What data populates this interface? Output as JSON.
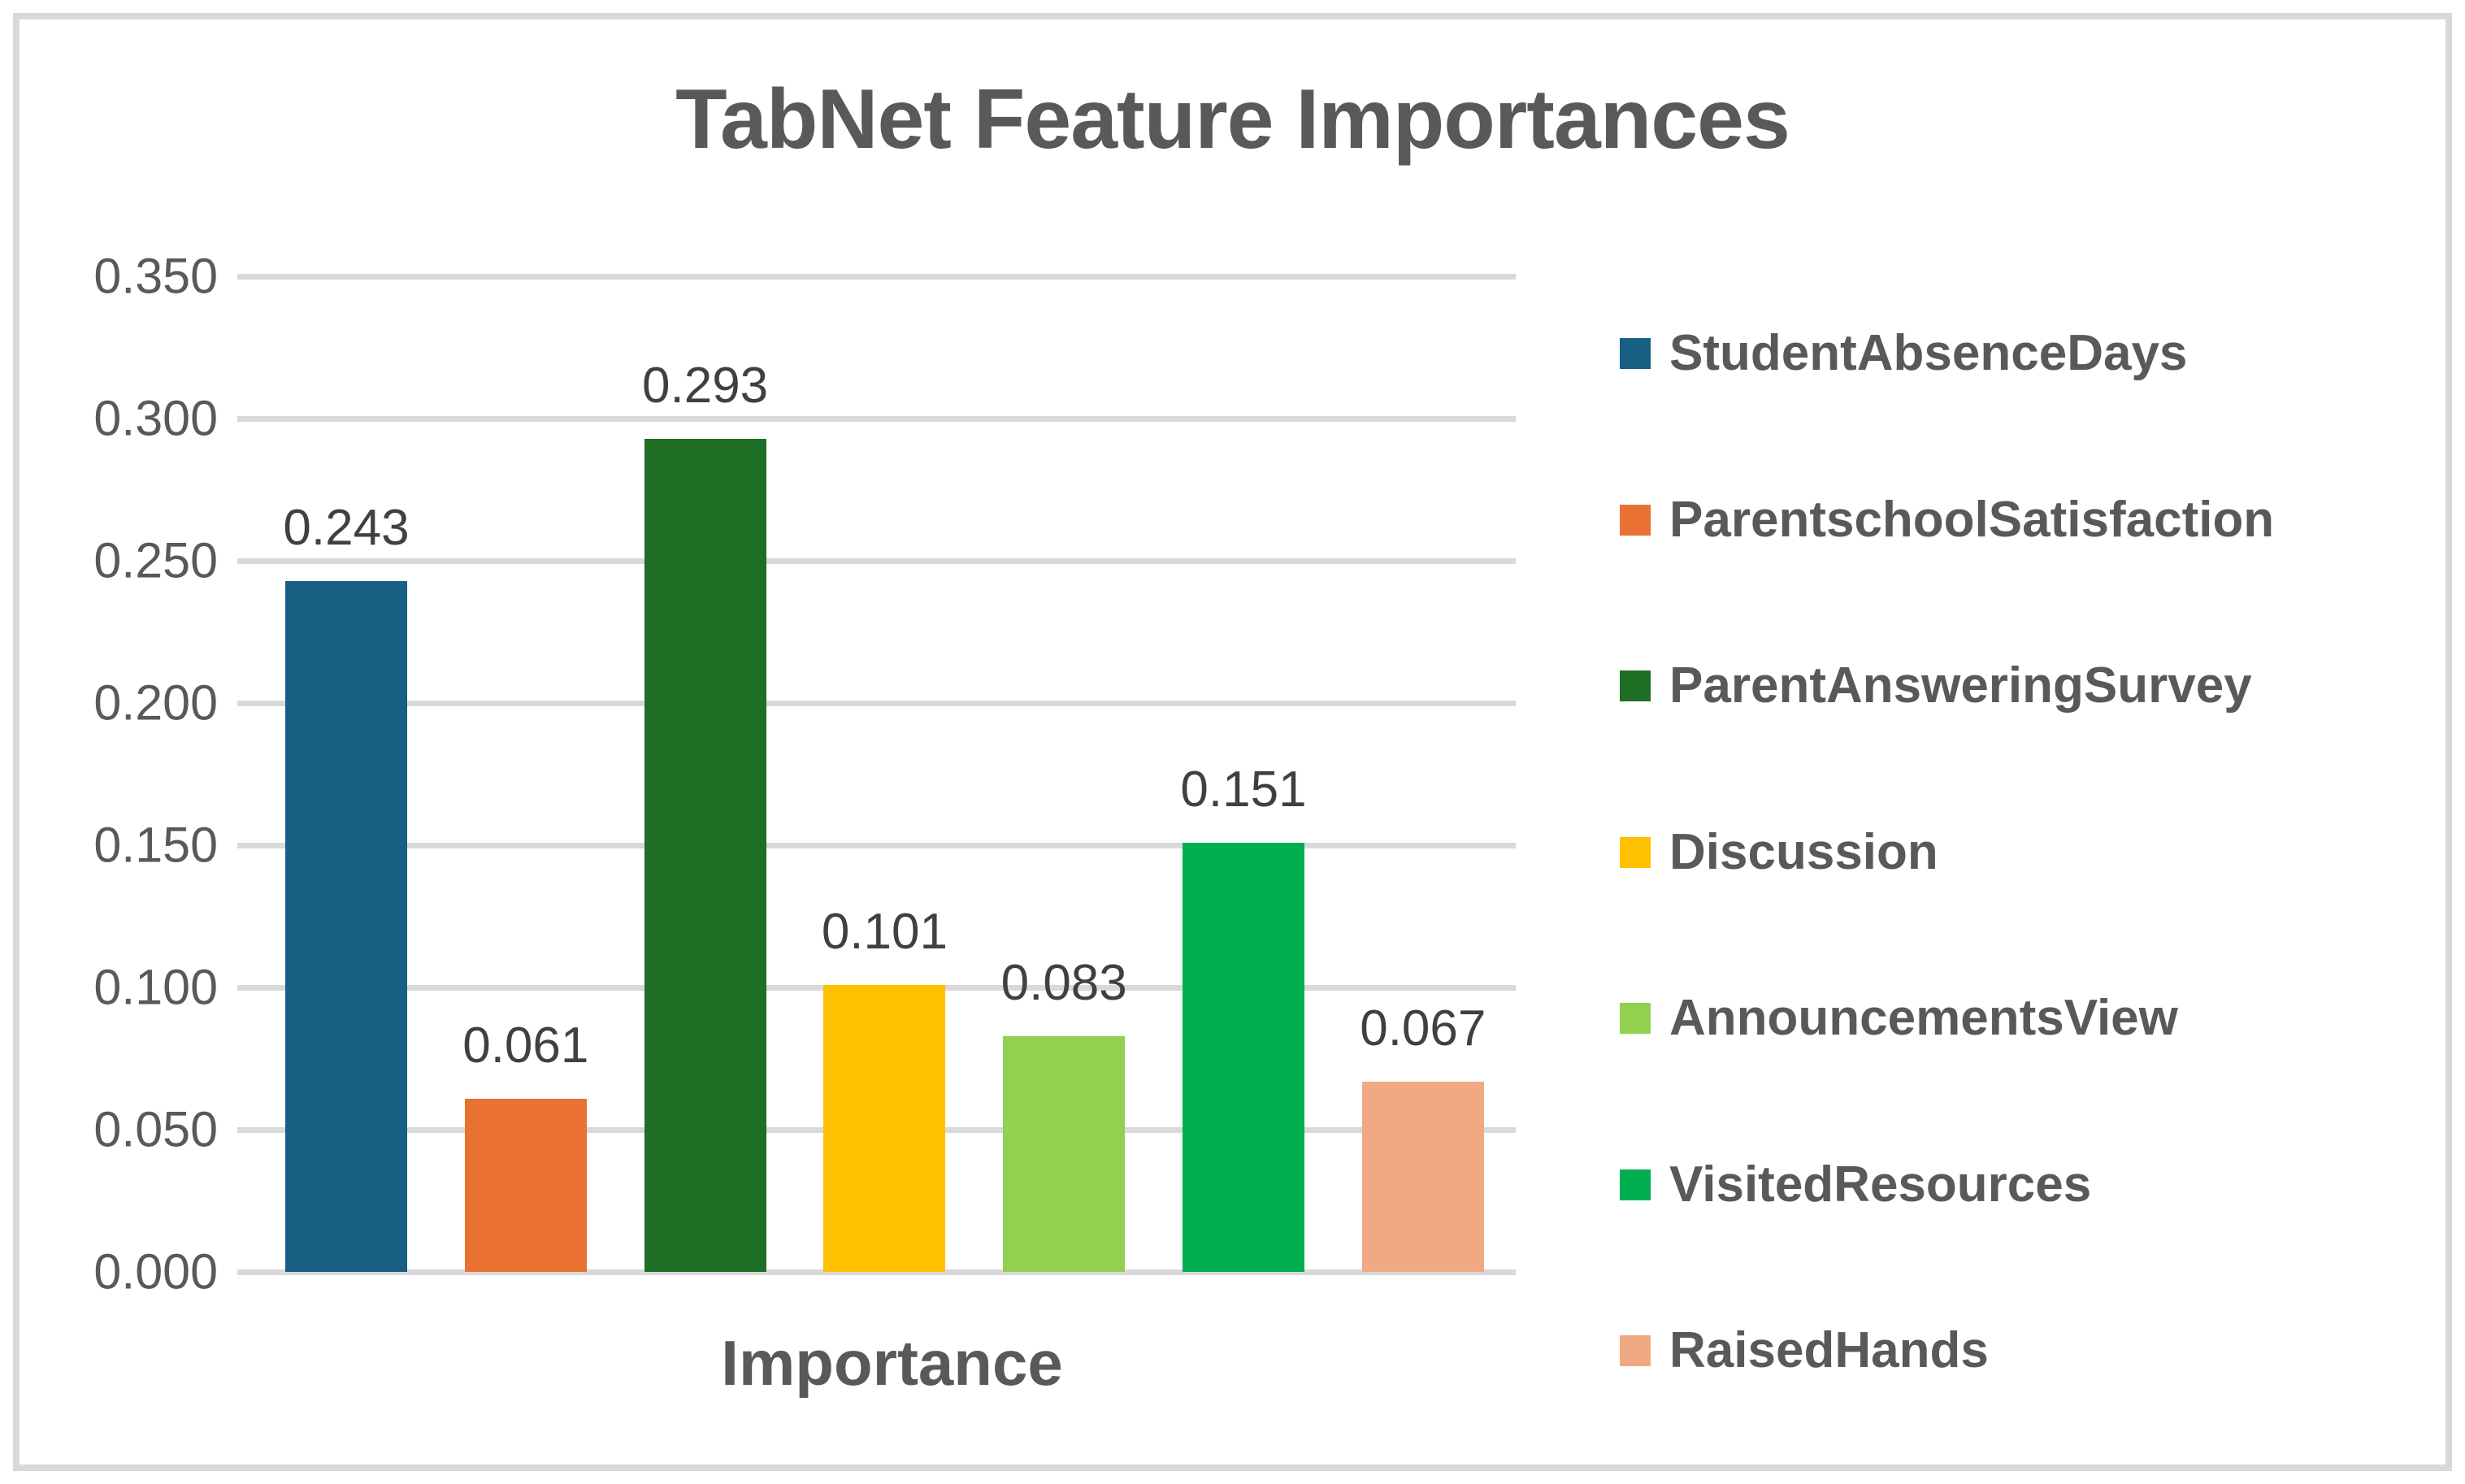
{
  "chart_data": {
    "type": "bar",
    "title": "TabNet Feature Importances",
    "xlabel": "Importance",
    "ylabel": "",
    "ylim": [
      0,
      0.35
    ],
    "grid": "horizontal",
    "legend_position": "right",
    "yticks": [
      {
        "value": 0.35,
        "label": "0.350"
      },
      {
        "value": 0.3,
        "label": "0.300"
      },
      {
        "value": 0.25,
        "label": "0.250"
      },
      {
        "value": 0.2,
        "label": "0.200"
      },
      {
        "value": 0.15,
        "label": "0.150"
      },
      {
        "value": 0.1,
        "label": "0.100"
      },
      {
        "value": 0.05,
        "label": "0.050"
      },
      {
        "value": 0.0,
        "label": "0.000"
      }
    ],
    "series": [
      {
        "name": "StudentAbsenceDays",
        "value": 0.243,
        "label": "0.243",
        "color": "#175F83"
      },
      {
        "name": "ParentschoolSatisfaction",
        "value": 0.061,
        "label": "0.061",
        "color": "#E97132"
      },
      {
        "name": "ParentAnsweringSurvey",
        "value": 0.293,
        "label": "0.293",
        "color": "#1E6E26"
      },
      {
        "name": "Discussion",
        "value": 0.101,
        "label": "0.101",
        "color": "#FFC000"
      },
      {
        "name": "AnnouncementsView",
        "value": 0.083,
        "label": "0.083",
        "color": "#92D050"
      },
      {
        "name": "VisitedResources",
        "value": 0.151,
        "label": "0.151",
        "color": "#00AE50"
      },
      {
        "name": "RaisedHands",
        "value": 0.067,
        "label": "0.067",
        "color": "#F1A983"
      }
    ]
  },
  "colors": {
    "chart_border": "#D9D9D9",
    "gridline": "#D9D9D9",
    "title_text": "#595959",
    "axis_text": "#595959",
    "data_label_text": "#404040",
    "legend_text": "#595959"
  }
}
